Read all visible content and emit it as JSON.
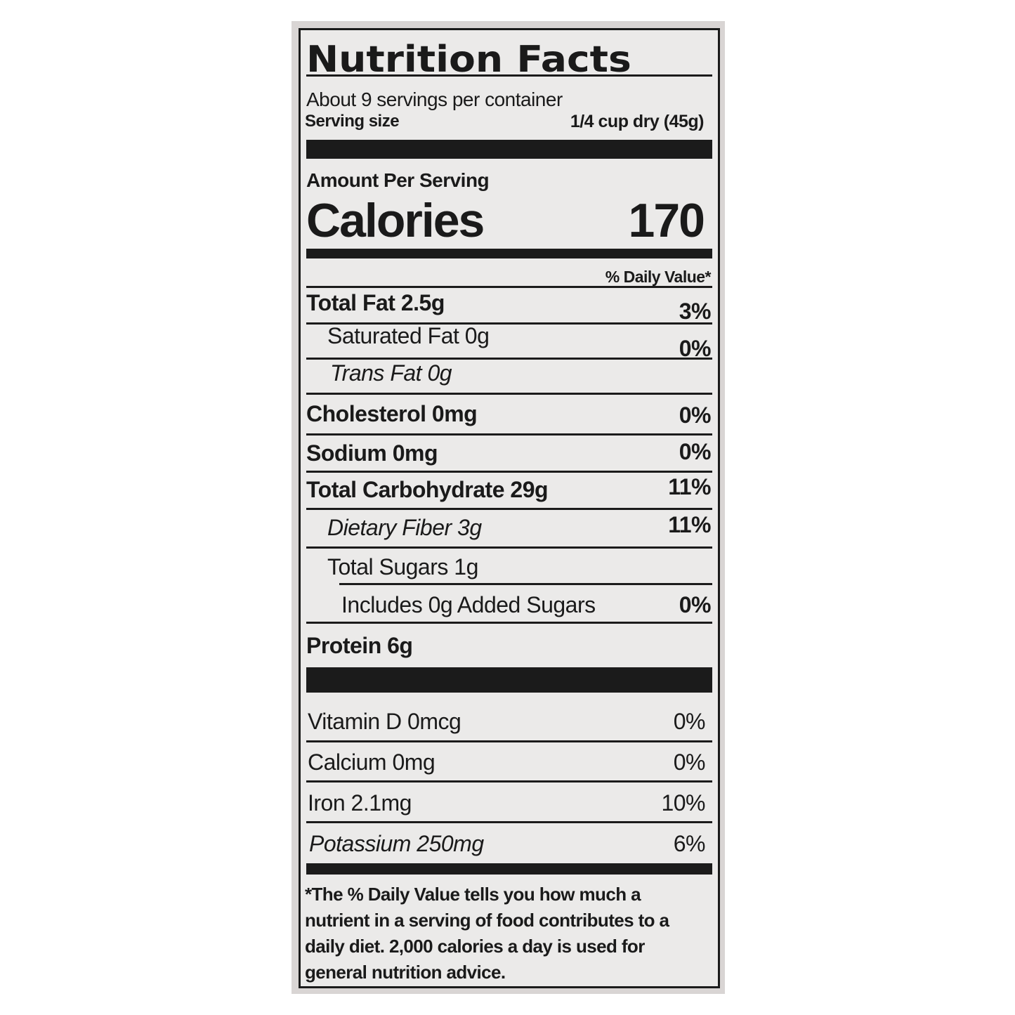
{
  "title": "Nutrition Facts",
  "servings_per_container": "About 9 servings per container",
  "serving_size_label": "Serving size",
  "serving_size_value": "1/4 cup dry (45g)",
  "amount_per_serving": "Amount Per Serving",
  "calories_label": "Calories",
  "calories_value": "170",
  "daily_value_header": "% Daily Value*",
  "nutrients": [
    {
      "label": "Total Fat 2.5g",
      "dv": "3%"
    },
    {
      "label": "Saturated Fat 0g",
      "dv": "0%"
    },
    {
      "label": "Trans Fat 0g",
      "dv": ""
    },
    {
      "label": "Cholesterol 0mg",
      "dv": "0%"
    },
    {
      "label": "Sodium 0mg",
      "dv": "0%"
    },
    {
      "label": "Total Carbohydrate 29g",
      "dv": "11%"
    },
    {
      "label": "Dietary Fiber 3g",
      "dv": "11%"
    },
    {
      "label": "Total Sugars 1g",
      "dv": ""
    },
    {
      "label": "Includes 0g Added Sugars",
      "dv": "0%"
    },
    {
      "label": "Protein 6g",
      "dv": ""
    }
  ],
  "vitamins": [
    {
      "label": "Vitamin D 0mcg",
      "dv": "0%"
    },
    {
      "label": "Calcium 0mg",
      "dv": "0%"
    },
    {
      "label": "Iron 2.1mg",
      "dv": "10%"
    },
    {
      "label": "Potassium 250mg",
      "dv": "6%"
    }
  ],
  "footnote": "*The % Daily Value tells you how much a nutrient in a serving of food contributes to a daily diet. 2,000 calories a day is used for general nutrition advice."
}
